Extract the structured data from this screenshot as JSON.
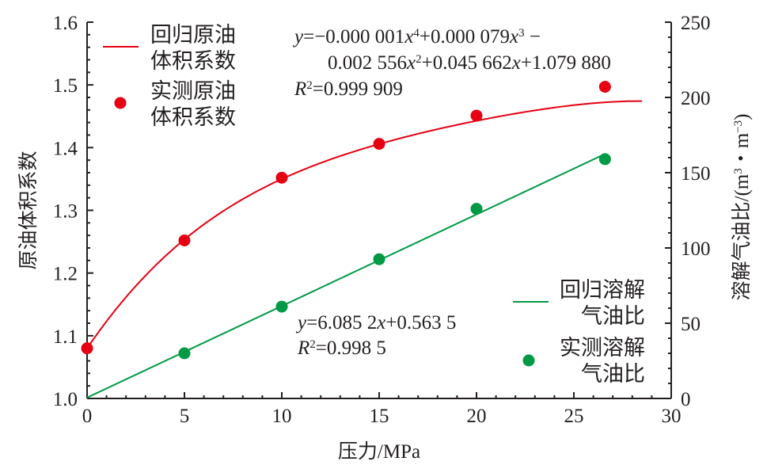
{
  "chart_data": {
    "type": "line",
    "x": {
      "label": "压力/MPa",
      "range": [
        0,
        30
      ],
      "ticks": [
        "0",
        "5",
        "10",
        "15",
        "20",
        "25",
        "30"
      ]
    },
    "y_left": {
      "label": "原油体积系数",
      "range": [
        1.0,
        1.6
      ],
      "ticks": [
        "1.0",
        "1.1",
        "1.2",
        "1.3",
        "1.4",
        "1.5",
        "1.6"
      ]
    },
    "y_right": {
      "label": "溶解气油比/(m³・m⁻³)",
      "range": [
        0,
        250
      ],
      "ticks": [
        "0",
        "50",
        "100",
        "150",
        "200",
        "250"
      ]
    },
    "series": [
      {
        "name": "回归原油体积系数",
        "kind": "line",
        "axis": "left",
        "color": "#e60012",
        "coefficients": [
          -1e-06,
          7.9e-05,
          -0.002556,
          0.045662,
          1.07988
        ],
        "x_range": [
          0,
          28.5
        ]
      },
      {
        "name": "实测原油体积系数",
        "kind": "scatter",
        "axis": "left",
        "color": "#e60012",
        "points": [
          [
            0,
            1.08
          ],
          [
            5,
            1.252
          ],
          [
            10,
            1.352
          ],
          [
            15,
            1.406
          ],
          [
            20,
            1.451
          ],
          [
            26.6,
            1.497
          ]
        ]
      },
      {
        "name": "回归溶解气油比",
        "kind": "line",
        "axis": "right",
        "color": "#009944",
        "slope": 6.0852,
        "intercept": 0.5635,
        "x_range": [
          0,
          26.6
        ]
      },
      {
        "name": "实测溶解气油比",
        "kind": "scatter",
        "axis": "right",
        "color": "#009944",
        "points": [
          [
            5,
            30
          ],
          [
            10,
            61
          ],
          [
            15,
            92.5
          ],
          [
            20,
            126
          ],
          [
            26.6,
            159
          ]
        ]
      }
    ],
    "legend": {
      "placement_1": "top-left",
      "placement_2": "right-middle",
      "items": [
        {
          "lines": [
            "回归原油",
            "体积系数"
          ],
          "symbol": "line",
          "color": "#e60012"
        },
        {
          "lines": [
            "实测原油",
            "体积系数"
          ],
          "symbol": "dot",
          "color": "#e60012"
        },
        {
          "lines": [
            "回归溶解",
            "气油比"
          ],
          "symbol": "line",
          "color": "#009944"
        },
        {
          "lines": [
            "实测溶解",
            "气油比"
          ],
          "symbol": "dot",
          "color": "#009944"
        }
      ]
    },
    "annotations": {
      "red_equation_line1": "y=−0.000 001x⁴+0.000 079x³ −",
      "red_equation_line2": "0.002 556x²+0.045 662x+1.079 880",
      "red_r2": "R²=0.999 909",
      "green_equation": "y=6.085 2x+0.563 5",
      "green_r2": "R²=0.998 5"
    },
    "grid": false
  }
}
